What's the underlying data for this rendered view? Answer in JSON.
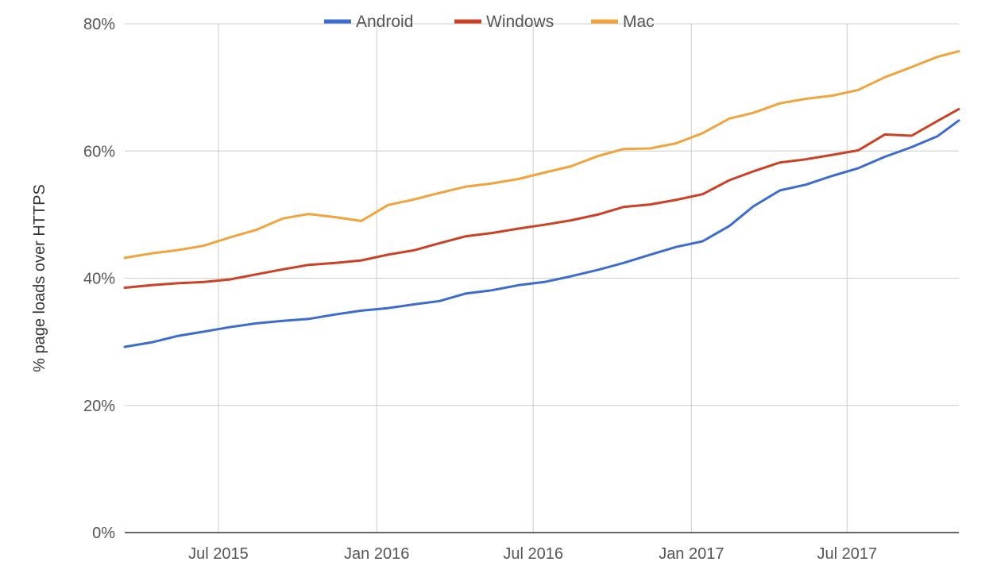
{
  "chart_data": {
    "type": "line",
    "ylabel": "% page loads over HTTPS",
    "xlabel": "",
    "ylim": [
      0,
      80
    ],
    "yticks": [
      0,
      20,
      40,
      60,
      80
    ],
    "ytick_labels": [
      "0%",
      "20%",
      "40%",
      "60%",
      "80%"
    ],
    "xlim": [
      "2015-03-14",
      "2017-11-08"
    ],
    "xticks": [
      "2015-07-01",
      "2016-01-01",
      "2016-07-01",
      "2017-01-01",
      "2017-07-01"
    ],
    "xtick_labels": [
      "Jul 2015",
      "Jan 2016",
      "Jul 2016",
      "Jan 2017",
      "Jul 2017"
    ],
    "grid": true,
    "legend": "top-center",
    "x": [
      "2015-03-14",
      "2015-04-14",
      "2015-05-14",
      "2015-06-14",
      "2015-07-14",
      "2015-08-14",
      "2015-09-14",
      "2015-10-14",
      "2015-11-14",
      "2015-12-14",
      "2016-01-14",
      "2016-02-14",
      "2016-03-14",
      "2016-04-14",
      "2016-05-14",
      "2016-06-14",
      "2016-07-14",
      "2016-08-14",
      "2016-09-14",
      "2016-10-14",
      "2016-11-14",
      "2016-12-14",
      "2017-01-14",
      "2017-02-14",
      "2017-03-14",
      "2017-04-14",
      "2017-05-14",
      "2017-06-14",
      "2017-07-14",
      "2017-08-14",
      "2017-09-14",
      "2017-10-14",
      "2017-11-08"
    ],
    "series": [
      {
        "name": "Android",
        "color": "#3d6cce",
        "values": [
          29.2,
          29.9,
          30.9,
          31.6,
          32.3,
          32.9,
          33.3,
          33.6,
          34.3,
          34.9,
          35.3,
          35.9,
          36.4,
          37.6,
          38.1,
          38.9,
          39.4,
          40.3,
          41.3,
          42.4,
          43.7,
          44.9,
          45.8,
          48.2,
          51.3,
          53.8,
          54.7,
          56.1,
          57.3,
          59.1,
          60.6,
          62.3,
          64.8
        ]
      },
      {
        "name": "Windows",
        "color": "#cc4125",
        "values": [
          38.5,
          38.9,
          39.2,
          39.4,
          39.8,
          40.6,
          41.4,
          42.1,
          42.4,
          42.8,
          43.7,
          44.4,
          45.5,
          46.6,
          47.1,
          47.8,
          48.4,
          49.1,
          50.0,
          51.2,
          51.6,
          52.3,
          53.2,
          55.4,
          56.8,
          58.2,
          58.7,
          59.4,
          60.1,
          62.6,
          62.4,
          64.7,
          66.6
        ]
      },
      {
        "name": "Mac",
        "color": "#f1a33c",
        "values": [
          43.2,
          43.9,
          44.4,
          45.1,
          46.4,
          47.6,
          49.4,
          50.1,
          49.6,
          49.0,
          51.5,
          52.4,
          53.4,
          54.4,
          54.9,
          55.6,
          56.6,
          57.6,
          59.2,
          60.3,
          60.4,
          61.2,
          62.8,
          65.1,
          66.0,
          67.5,
          68.2,
          68.7,
          69.6,
          71.6,
          73.2,
          74.8,
          75.7
        ]
      }
    ]
  }
}
